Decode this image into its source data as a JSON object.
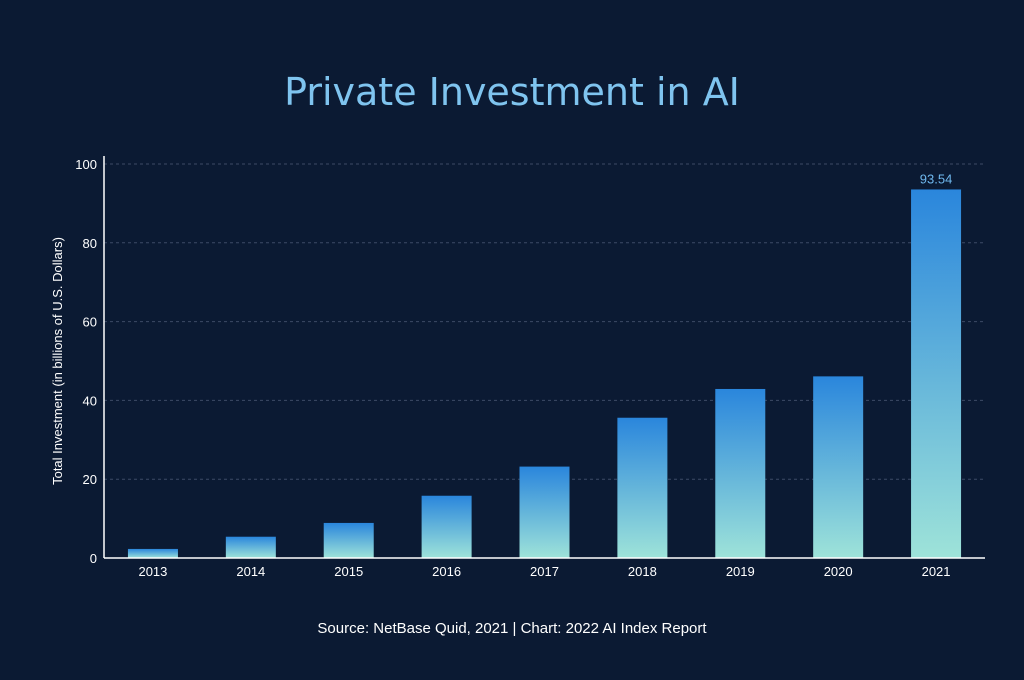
{
  "chart_data": {
    "type": "bar",
    "title": "Private Investment in AI",
    "ylabel": "Total Investment (in billions of U.S. Dollars)",
    "xlabel": "",
    "categories": [
      "2013",
      "2014",
      "2015",
      "2016",
      "2017",
      "2018",
      "2019",
      "2020",
      "2021"
    ],
    "values": [
      2.3,
      5.4,
      8.9,
      15.8,
      23.2,
      35.6,
      42.9,
      46.1,
      93.54
    ],
    "ylim": [
      0,
      100
    ],
    "yticks": [
      0,
      20,
      40,
      60,
      80,
      100
    ],
    "data_labels": [
      {
        "index": 8,
        "text": "93.54"
      }
    ],
    "grid": "horizontal dashed",
    "colors": {
      "background": "#0b1a33",
      "bar_top": "#2a86dc",
      "bar_bottom": "#9ee3d9",
      "title": "#7fc4ef",
      "data_label": "#6fb8ee",
      "grid": "#3c4b66"
    }
  },
  "source_note": "Source: NetBase Quid, 2021 | Chart: 2022 AI Index Report"
}
